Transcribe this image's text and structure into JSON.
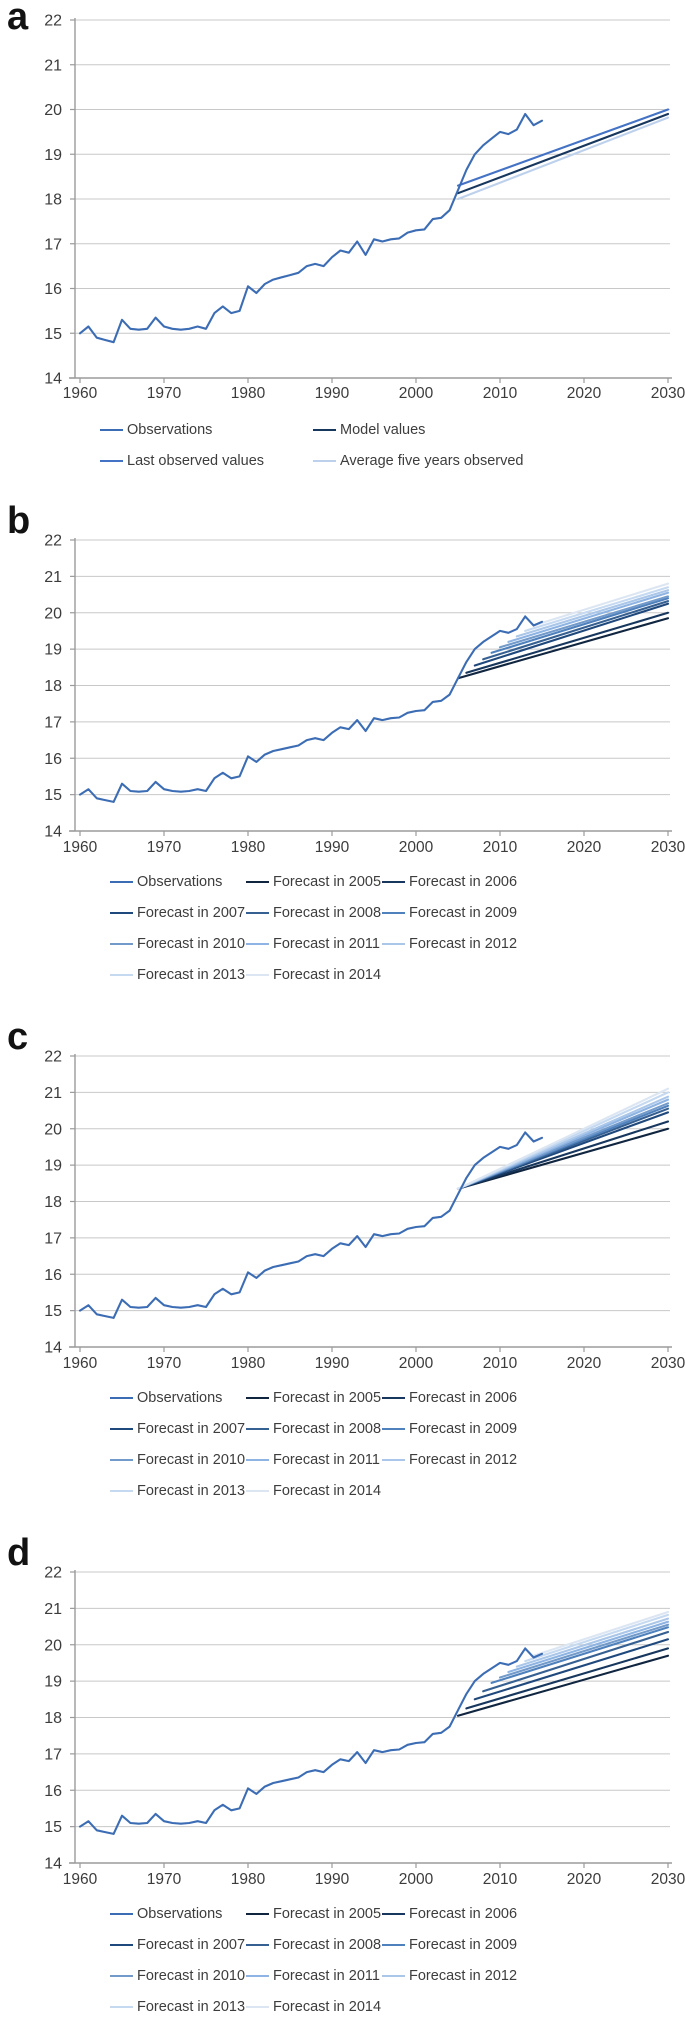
{
  "figure": {
    "panel_letters": [
      "a",
      "b",
      "c",
      "d"
    ]
  },
  "chart_data": {
    "type": "line",
    "title": "",
    "xlabel": "",
    "ylabel": "",
    "xlim": [
      1959,
      2031
    ],
    "ylim": [
      14,
      22
    ],
    "grid": "horizontal",
    "legend_position": "below",
    "yticks": [
      14,
      15,
      16,
      17,
      18,
      19,
      20,
      21,
      22
    ],
    "xticks": [
      1960,
      1970,
      1980,
      1990,
      2000,
      2010,
      2020,
      2030
    ],
    "observations": {
      "name": "Observations",
      "color": "#3C6DB4",
      "years_start": 1960,
      "values": [
        15.0,
        15.15,
        14.9,
        14.85,
        14.8,
        15.3,
        15.1,
        15.08,
        15.1,
        15.35,
        15.15,
        15.1,
        15.08,
        15.1,
        15.15,
        15.1,
        15.45,
        15.6,
        15.45,
        15.5,
        16.05,
        15.9,
        16.1,
        16.2,
        16.25,
        16.3,
        16.35,
        16.5,
        16.55,
        16.5,
        16.7,
        16.85,
        16.8,
        17.05,
        16.75,
        17.1,
        17.05,
        17.1,
        17.12,
        17.25,
        17.3,
        17.32,
        17.55,
        17.58,
        17.75,
        18.2,
        18.65,
        19.0,
        19.2,
        19.35,
        19.5,
        19.45,
        19.55,
        19.9,
        19.65,
        19.75
      ]
    },
    "panels": [
      {
        "label": "a",
        "series": [
          {
            "name": "Average five years observed",
            "color": "#BDD1EC",
            "x": [
              2005,
              2030
            ],
            "y": [
              18.0,
              19.82
            ]
          },
          {
            "name": "Model values",
            "color": "#17375E",
            "x": [
              2005,
              2030
            ],
            "y": [
              18.13,
              19.9
            ]
          },
          {
            "name": "Last observed values",
            "color": "#4472C4",
            "x": [
              2005,
              2030
            ],
            "y": [
              18.3,
              20.0
            ]
          },
          {
            "ref": "observations"
          }
        ],
        "legend_rows": [
          [
            "Observations",
            "Model values"
          ],
          [
            "Last observed values",
            "Average five years observed"
          ]
        ]
      },
      {
        "label": "b",
        "series": [
          {
            "name": "Forecast in 2005",
            "color": "#10253F",
            "x": [
              2005,
              2030
            ],
            "y": [
              18.2,
              19.85
            ]
          },
          {
            "name": "Forecast in 2006",
            "color": "#17375E",
            "x": [
              2006,
              2030
            ],
            "y": [
              18.35,
              20.0
            ]
          },
          {
            "name": "Forecast in 2007",
            "color": "#1F497D",
            "x": [
              2007,
              2030
            ],
            "y": [
              18.55,
              20.25
            ]
          },
          {
            "name": "Forecast in 2008",
            "color": "#366092",
            "x": [
              2008,
              2030
            ],
            "y": [
              18.72,
              20.32
            ]
          },
          {
            "name": "Forecast in 2009",
            "color": "#4F81BD",
            "x": [
              2009,
              2030
            ],
            "y": [
              18.9,
              20.4
            ]
          },
          {
            "name": "Forecast in 2010",
            "color": "#729ACA",
            "x": [
              2010,
              2030
            ],
            "y": [
              19.05,
              20.45
            ]
          },
          {
            "name": "Forecast in 2011",
            "color": "#8EB4E3",
            "x": [
              2011,
              2030
            ],
            "y": [
              19.2,
              20.55
            ]
          },
          {
            "name": "Forecast in 2012",
            "color": "#AAC6E8",
            "x": [
              2012,
              2030
            ],
            "y": [
              19.35,
              20.62
            ]
          },
          {
            "name": "Forecast in 2013",
            "color": "#C5D9F1",
            "x": [
              2013,
              2030
            ],
            "y": [
              19.5,
              20.7
            ]
          },
          {
            "name": "Forecast in 2014",
            "color": "#DCE6F2",
            "x": [
              2014,
              2030
            ],
            "y": [
              19.65,
              20.8
            ]
          },
          {
            "ref": "observations"
          }
        ],
        "legend_rows": [
          [
            "Observations",
            "Forecast in 2005",
            "Forecast in 2006"
          ],
          [
            "Forecast in 2007",
            "Forecast in 2008",
            "Forecast in 2009"
          ],
          [
            "Forecast in 2010",
            "Forecast in 2011",
            "Forecast in 2012"
          ],
          [
            "Forecast in 2013",
            "Forecast in 2014"
          ]
        ]
      },
      {
        "label": "c",
        "series": [
          {
            "name": "Forecast in 2005",
            "color": "#10253F",
            "x": [
              2005,
              2030
            ],
            "y": [
              18.35,
              20.0
            ]
          },
          {
            "name": "Forecast in 2006",
            "color": "#17375E",
            "x": [
              2005,
              2030
            ],
            "y": [
              18.35,
              20.2
            ]
          },
          {
            "name": "Forecast in 2007",
            "color": "#1F497D",
            "x": [
              2005,
              2030
            ],
            "y": [
              18.35,
              20.45
            ]
          },
          {
            "name": "Forecast in 2008",
            "color": "#366092",
            "x": [
              2005,
              2030
            ],
            "y": [
              18.35,
              20.55
            ]
          },
          {
            "name": "Forecast in 2009",
            "color": "#4F81BD",
            "x": [
              2005,
              2030
            ],
            "y": [
              18.35,
              20.63
            ]
          },
          {
            "name": "Forecast in 2010",
            "color": "#729ACA",
            "x": [
              2005,
              2030
            ],
            "y": [
              18.35,
              20.7
            ]
          },
          {
            "name": "Forecast in 2011",
            "color": "#8EB4E3",
            "x": [
              2005,
              2030
            ],
            "y": [
              18.35,
              20.8
            ]
          },
          {
            "name": "Forecast in 2012",
            "color": "#AAC6E8",
            "x": [
              2005,
              2030
            ],
            "y": [
              18.35,
              20.88
            ]
          },
          {
            "name": "Forecast in 2013",
            "color": "#C5D9F1",
            "x": [
              2005,
              2030
            ],
            "y": [
              18.35,
              21.0
            ]
          },
          {
            "name": "Forecast in 2014",
            "color": "#DCE6F2",
            "x": [
              2005,
              2030
            ],
            "y": [
              18.35,
              21.1
            ]
          },
          {
            "ref": "observations"
          }
        ],
        "legend_rows": [
          [
            "Observations",
            "Forecast in 2005",
            "Forecast in 2006"
          ],
          [
            "Forecast in 2007",
            "Forecast in 2008",
            "Forecast in 2009"
          ],
          [
            "Forecast in 2010",
            "Forecast in 2011",
            "Forecast in 2012"
          ],
          [
            "Forecast in 2013",
            "Forecast in 2014"
          ]
        ]
      },
      {
        "label": "d",
        "series": [
          {
            "name": "Forecast in 2005",
            "color": "#10253F",
            "x": [
              2005,
              2030
            ],
            "y": [
              18.05,
              19.7
            ]
          },
          {
            "name": "Forecast in 2006",
            "color": "#17375E",
            "x": [
              2006,
              2030
            ],
            "y": [
              18.25,
              19.9
            ]
          },
          {
            "name": "Forecast in 2007",
            "color": "#1F497D",
            "x": [
              2007,
              2030
            ],
            "y": [
              18.5,
              20.15
            ]
          },
          {
            "name": "Forecast in 2008",
            "color": "#366092",
            "x": [
              2008,
              2030
            ],
            "y": [
              18.72,
              20.35
            ]
          },
          {
            "name": "Forecast in 2009",
            "color": "#4F81BD",
            "x": [
              2009,
              2030
            ],
            "y": [
              18.95,
              20.48
            ]
          },
          {
            "name": "Forecast in 2010",
            "color": "#729ACA",
            "x": [
              2010,
              2030
            ],
            "y": [
              19.1,
              20.55
            ]
          },
          {
            "name": "Forecast in 2011",
            "color": "#8EB4E3",
            "x": [
              2011,
              2030
            ],
            "y": [
              19.25,
              20.63
            ]
          },
          {
            "name": "Forecast in 2012",
            "color": "#AAC6E8",
            "x": [
              2012,
              2030
            ],
            "y": [
              19.4,
              20.72
            ]
          },
          {
            "name": "Forecast in 2013",
            "color": "#C5D9F1",
            "x": [
              2013,
              2030
            ],
            "y": [
              19.55,
              20.82
            ]
          },
          {
            "name": "Forecast in 2014",
            "color": "#DCE6F2",
            "x": [
              2014,
              2030
            ],
            "y": [
              19.7,
              20.9
            ]
          },
          {
            "ref": "observations"
          }
        ],
        "legend_rows": [
          [
            "Observations",
            "Forecast in 2005",
            "Forecast in 2006"
          ],
          [
            "Forecast in 2007",
            "Forecast in 2008",
            "Forecast in 2009"
          ],
          [
            "Forecast in 2010",
            "Forecast in 2011",
            "Forecast in 2012"
          ],
          [
            "Forecast in 2013",
            "Forecast in 2014"
          ]
        ]
      }
    ],
    "colors": {
      "gridline": "#C8C8C8",
      "axis": "#9B9B9B",
      "tick_text": "#3C3C3C"
    }
  }
}
